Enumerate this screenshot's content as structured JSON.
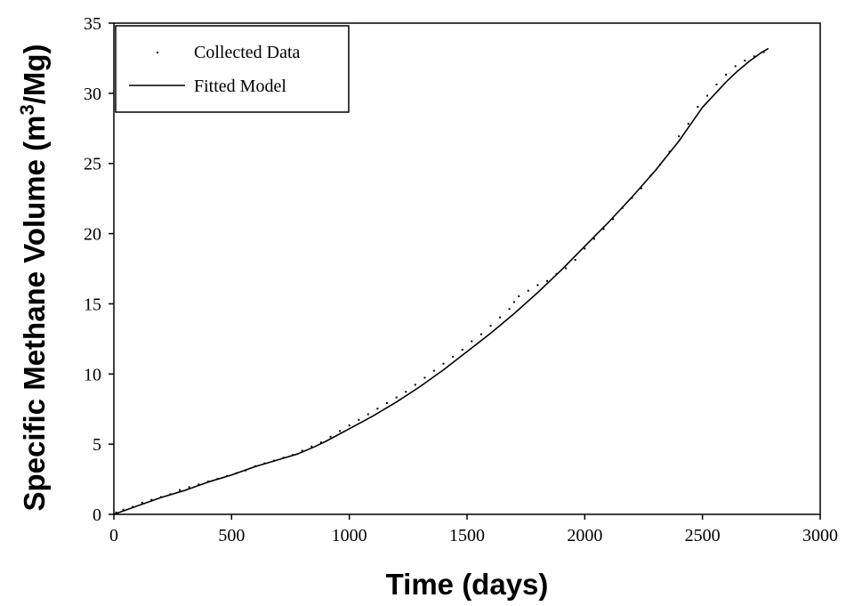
{
  "chart_data": {
    "type": "scatter",
    "title": "",
    "xlabel": "Time (days)",
    "ylabel_main": "Specific Methane Volume (m",
    "ylabel_sup": "3",
    "ylabel_end": "/Mg)",
    "xlim": [
      0,
      3000
    ],
    "ylim": [
      0,
      35
    ],
    "xticks": [
      0,
      500,
      1000,
      1500,
      2000,
      2500,
      3000
    ],
    "yticks": [
      0,
      5,
      10,
      15,
      20,
      25,
      30,
      35
    ],
    "xtick_labels": [
      "0",
      "500",
      "1000",
      "1500",
      "2000",
      "2500",
      "3000"
    ],
    "ytick_labels": [
      "0",
      "5",
      "10",
      "15",
      "20",
      "25",
      "30",
      "35"
    ],
    "grid": false,
    "legend_position": "top-left",
    "legend": [
      "Collected Data",
      "Fitted Model"
    ],
    "series": [
      {
        "name": "Collected Data",
        "style": "points",
        "color": "#000000",
        "x": [
          10,
          40,
          80,
          120,
          160,
          200,
          240,
          280,
          320,
          360,
          400,
          440,
          480,
          520,
          560,
          600,
          640,
          680,
          720,
          760,
          800,
          840,
          880,
          920,
          960,
          1000,
          1040,
          1080,
          1120,
          1160,
          1200,
          1240,
          1280,
          1320,
          1360,
          1400,
          1440,
          1480,
          1520,
          1560,
          1600,
          1640,
          1680,
          1700,
          1720,
          1760,
          1800,
          1840,
          1880,
          1920,
          1960,
          2000,
          2040,
          2080,
          2120,
          2160,
          2200,
          2240,
          2280,
          2320,
          2360,
          2400,
          2440,
          2480,
          2520,
          2560,
          2600,
          2640,
          2680,
          2720,
          2760
        ],
        "y": [
          0.1,
          0.3,
          0.5,
          0.8,
          1.0,
          1.2,
          1.4,
          1.7,
          1.9,
          2.1,
          2.3,
          2.5,
          2.7,
          2.9,
          3.1,
          3.4,
          3.6,
          3.8,
          4.0,
          4.2,
          4.5,
          4.8,
          5.1,
          5.5,
          5.9,
          6.3,
          6.7,
          7.1,
          7.5,
          7.9,
          8.3,
          8.7,
          9.2,
          9.7,
          10.2,
          10.7,
          11.2,
          11.7,
          12.3,
          12.8,
          13.4,
          14.0,
          14.6,
          15.1,
          15.5,
          15.9,
          16.3,
          16.6,
          17.1,
          17.5,
          18.1,
          18.9,
          19.6,
          20.3,
          21.0,
          21.8,
          22.5,
          23.2,
          24.1,
          24.9,
          25.8,
          26.9,
          27.8,
          29.0,
          29.8,
          30.6,
          31.3,
          31.9,
          32.3,
          32.6,
          32.9
        ]
      },
      {
        "name": "Fitted Model",
        "style": "line",
        "color": "#000000",
        "x": [
          0,
          100,
          200,
          300,
          400,
          500,
          600,
          700,
          780,
          850,
          900,
          1000,
          1100,
          1200,
          1300,
          1400,
          1500,
          1600,
          1700,
          1800,
          1900,
          2000,
          2100,
          2200,
          2300,
          2400,
          2450,
          2500,
          2550,
          2600,
          2650,
          2700,
          2750,
          2780
        ],
        "y": [
          0,
          0.6,
          1.2,
          1.7,
          2.3,
          2.8,
          3.4,
          3.9,
          4.3,
          4.8,
          5.2,
          6.1,
          7.0,
          8.0,
          9.1,
          10.3,
          11.6,
          12.9,
          14.3,
          15.8,
          17.4,
          19.1,
          20.8,
          22.6,
          24.5,
          26.6,
          27.8,
          29.0,
          29.9,
          30.8,
          31.6,
          32.3,
          32.9,
          33.2
        ]
      }
    ]
  }
}
